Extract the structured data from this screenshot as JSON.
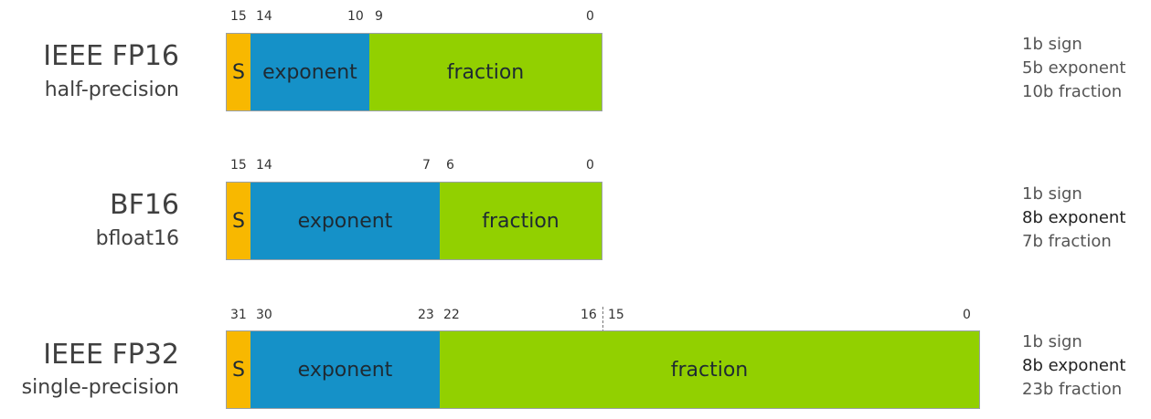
{
  "formats": [
    {
      "name": "IEEE FP16",
      "subtitle": "half-precision",
      "bits": {
        "b15": "15",
        "b14": "14",
        "b10": "10",
        "b9": "9",
        "b0": "0"
      },
      "segments": {
        "sign": "S",
        "exponent": "exponent",
        "fraction": "fraction"
      },
      "desc": [
        "1b sign",
        "5b exponent",
        "10b fraction"
      ]
    },
    {
      "name": "BF16",
      "subtitle": "bfloat16",
      "bits": {
        "b15": "15",
        "b14": "14",
        "b7": "7",
        "b6": "6",
        "b0": "0"
      },
      "segments": {
        "sign": "S",
        "exponent": "exponent",
        "fraction": "fraction"
      },
      "desc": [
        "1b sign",
        "8b exponent",
        "7b fraction"
      ]
    },
    {
      "name": "IEEE FP32",
      "subtitle": "single-precision",
      "bits": {
        "b31": "31",
        "b30": "30",
        "b23": "23",
        "b22": "22",
        "b16": "16",
        "b15": "15",
        "b0": "0"
      },
      "segments": {
        "sign": "S",
        "exponent": "exponent",
        "fraction": "fraction"
      },
      "desc": [
        "1b sign",
        "8b exponent",
        "23b fraction"
      ]
    }
  ],
  "colors": {
    "sign": "#f8b800",
    "exponent": "#1591c8",
    "fraction": "#92d000"
  }
}
